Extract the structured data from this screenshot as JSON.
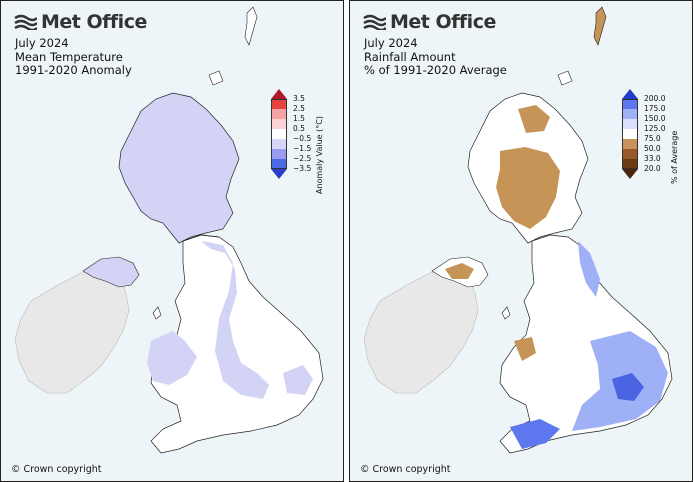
{
  "brand": {
    "name": "Met Office",
    "copyright": "© Crown copyright"
  },
  "left_map": {
    "title_lines": [
      "July 2024",
      "Mean Temperature",
      "1991-2020 Anomaly"
    ],
    "colorbar": {
      "label": "Anomaly Value (°C)",
      "ticks": [
        "3.5",
        "2.5",
        "1.5",
        "0.5",
        "−0.5",
        "−1.5",
        "−2.5",
        "−3.5"
      ],
      "colors": [
        "#b2182b",
        "#e8433c",
        "#f6a3a5",
        "#fcd3d4",
        "#ffffff",
        "#d6d6fb",
        "#9a9af0",
        "#4a6ae6",
        "#2b3ec9"
      ]
    }
  },
  "right_map": {
    "title_lines": [
      "July 2024",
      "Rainfall Amount",
      "% of 1991-2020 Average"
    ],
    "colorbar": {
      "label": "% of Average",
      "ticks": [
        "200.0",
        "175.0",
        "150.0",
        "125.0",
        "75.0",
        "50.0",
        "33.0",
        "20.0"
      ],
      "colors": [
        "#1f3fcb",
        "#5d78ee",
        "#9fb1f6",
        "#d9e0fb",
        "#ffffff",
        "#c8925a",
        "#9a5a28",
        "#6a3a12",
        "#4a2408"
      ]
    }
  },
  "colors": {
    "land": "#ffffff",
    "sea": "#eef5f8",
    "ireland": "#e8e8e8",
    "cool_anomaly": "#d3d3f5",
    "dry": "#c69457",
    "wet": "#4a63e2"
  }
}
